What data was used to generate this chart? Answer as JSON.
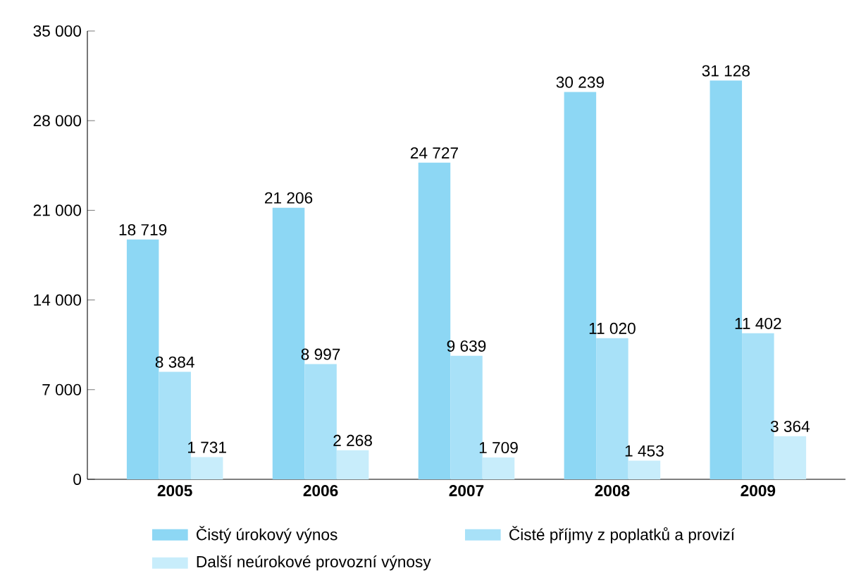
{
  "chart_data": {
    "type": "bar",
    "categories": [
      "2005",
      "2006",
      "2007",
      "2008",
      "2009"
    ],
    "series": [
      {
        "name": "Čistý úrokový výnos",
        "color": "#8dd7f4",
        "values": [
          18719,
          21206,
          24727,
          30239,
          31128
        ],
        "value_labels": [
          "18 719",
          "21 206",
          "24 727",
          "30 239",
          "31 128"
        ]
      },
      {
        "name": "Čisté příjmy z poplatků a provizí",
        "color": "#a8e1f8",
        "values": [
          8384,
          8997,
          9639,
          11020,
          11402
        ],
        "value_labels": [
          "8 384",
          "8 997",
          "9 639",
          "11 020",
          "11 402"
        ]
      },
      {
        "name": "Další neúrokové provozní výnosy",
        "color": "#c8edfb",
        "values": [
          1731,
          2268,
          1709,
          1453,
          3364
        ],
        "value_labels": [
          "1 731",
          "2 268",
          "1 709",
          "1 453",
          "3 364"
        ]
      }
    ],
    "ylim": [
      0,
      35000
    ],
    "yticks": [
      0,
      {
        "value": 7000,
        "label": "7 000"
      },
      {
        "value": 14000,
        "label": "14 000"
      },
      {
        "value": 21000,
        "label": "21 000"
      },
      {
        "value": 28000,
        "label": "28 000"
      },
      {
        "value": 35000,
        "label": "35 000"
      }
    ],
    "legend": "bottom"
  }
}
